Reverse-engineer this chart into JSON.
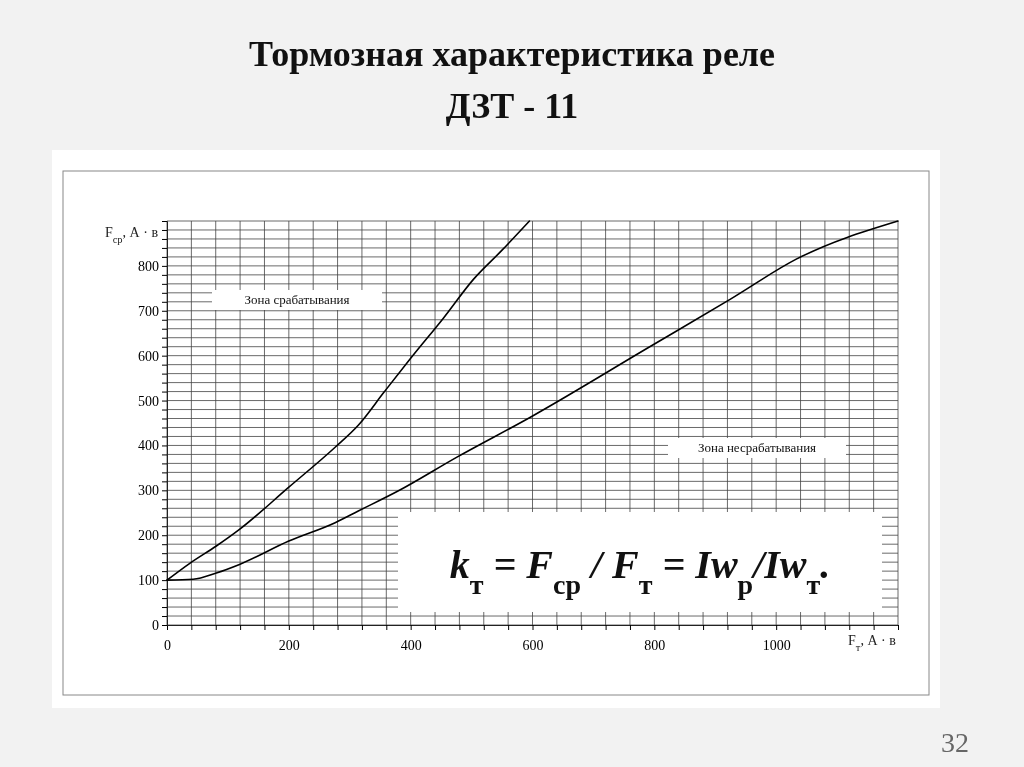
{
  "chart_data": {
    "type": "line",
    "title": "Тормозная характеристика реле\nДЗТ - 11",
    "xlabel": "F$_{т}$, А · в",
    "ylabel": "F$_{ср}$, А · в",
    "annotations": [
      "Зона срабатывания",
      "Зона несрабатывания",
      "k$_{т}$ = F$_{ср}$ / F$_{т}$ = Iw$_{р}$/Iw$_{т}$.",
      "32"
    ],
    "series": [
      {
        "color": "#000000",
        "x": [
          0,
          38,
          81,
          119,
          200,
          276,
          314,
          357,
          400,
          454,
          503,
          550,
          595
        ],
        "values": [
          100,
          138,
          176,
          213,
          307,
          396,
          445,
          520,
          594,
          684,
          770,
          835,
          900
        ]
      },
      {
        "color": "#000000",
        "x": [
          0,
          43,
          81,
          119,
          200,
          276,
          314,
          380,
          476,
          598,
          789,
          925,
          1033,
          1200
        ],
        "values": [
          100,
          102,
          116,
          135,
          187,
          228,
          254,
          299,
          374,
          464,
          617,
          726,
          815,
          900
        ]
      }
    ],
    "xlim": [
      0,
      1200
    ],
    "ylim": [
      0,
      900
    ],
    "xticks": [
      0,
      {
        "value": 40,
        "label": null
      },
      {
        "value": 80,
        "label": null
      },
      {
        "value": 120,
        "label": null
      },
      {
        "value": 160,
        "label": null
      },
      200,
      {
        "value": 240,
        "label": null
      },
      {
        "value": 280,
        "label": null
      },
      {
        "value": 320,
        "label": null
      },
      {
        "value": 360,
        "label": null
      },
      400,
      {
        "value": 440,
        "label": null
      },
      {
        "value": 480,
        "label": null
      },
      {
        "value": 520,
        "label": null
      },
      {
        "value": 560,
        "label": null
      },
      600,
      {
        "value": 640,
        "label": null
      },
      {
        "value": 680,
        "label": null
      },
      {
        "value": 720,
        "label": null
      },
      {
        "value": 760,
        "label": null
      },
      800,
      {
        "value": 840,
        "label": null
      },
      {
        "value": 880,
        "label": null
      },
      {
        "value": 920,
        "label": null
      },
      {
        "value": 960,
        "label": null
      },
      1000,
      {
        "value": 1040,
        "label": null
      },
      {
        "value": 1080,
        "label": null
      },
      {
        "value": 1120,
        "label": null
      },
      {
        "value": 1160,
        "label": null
      },
      {
        "value": 1200,
        "label": null
      }
    ],
    "yticks": [
      0,
      {
        "value": 20,
        "label": null
      },
      {
        "value": 40,
        "label": null
      },
      {
        "value": 60,
        "label": null
      },
      {
        "value": 80,
        "label": null
      },
      100,
      {
        "value": 120,
        "label": null
      },
      {
        "value": 140,
        "label": null
      },
      {
        "value": 160,
        "label": null
      },
      {
        "value": 180,
        "label": null
      },
      200,
      {
        "value": 220,
        "label": null
      },
      {
        "value": 240,
        "label": null
      },
      {
        "value": 260,
        "label": null
      },
      {
        "value": 280,
        "label": null
      },
      300,
      {
        "value": 320,
        "label": null
      },
      {
        "value": 340,
        "label": null
      },
      {
        "value": 360,
        "label": null
      },
      {
        "value": 380,
        "label": null
      },
      400,
      {
        "value": 420,
        "label": null
      },
      {
        "value": 440,
        "label": null
      },
      {
        "value": 460,
        "label": null
      },
      {
        "value": 480,
        "label": null
      },
      500,
      {
        "value": 520,
        "label": null
      },
      {
        "value": 540,
        "label": null
      },
      {
        "value": 560,
        "label": null
      },
      {
        "value": 580,
        "label": null
      },
      600,
      {
        "value": 620,
        "label": null
      },
      {
        "value": 640,
        "label": null
      },
      {
        "value": 660,
        "label": null
      },
      {
        "value": 680,
        "label": null
      },
      700,
      {
        "value": 720,
        "label": null
      },
      {
        "value": 740,
        "label": null
      },
      {
        "value": 760,
        "label": null
      },
      {
        "value": 780,
        "label": null
      },
      800,
      {
        "value": 820,
        "label": null
      },
      {
        "value": 840,
        "label": null
      },
      {
        "value": 860,
        "label": null
      },
      {
        "value": 880,
        "label": null
      },
      {
        "value": 900,
        "label": null
      }
    ],
    "grid": true,
    "marker": "none",
    "line_style": "solid"
  }
}
